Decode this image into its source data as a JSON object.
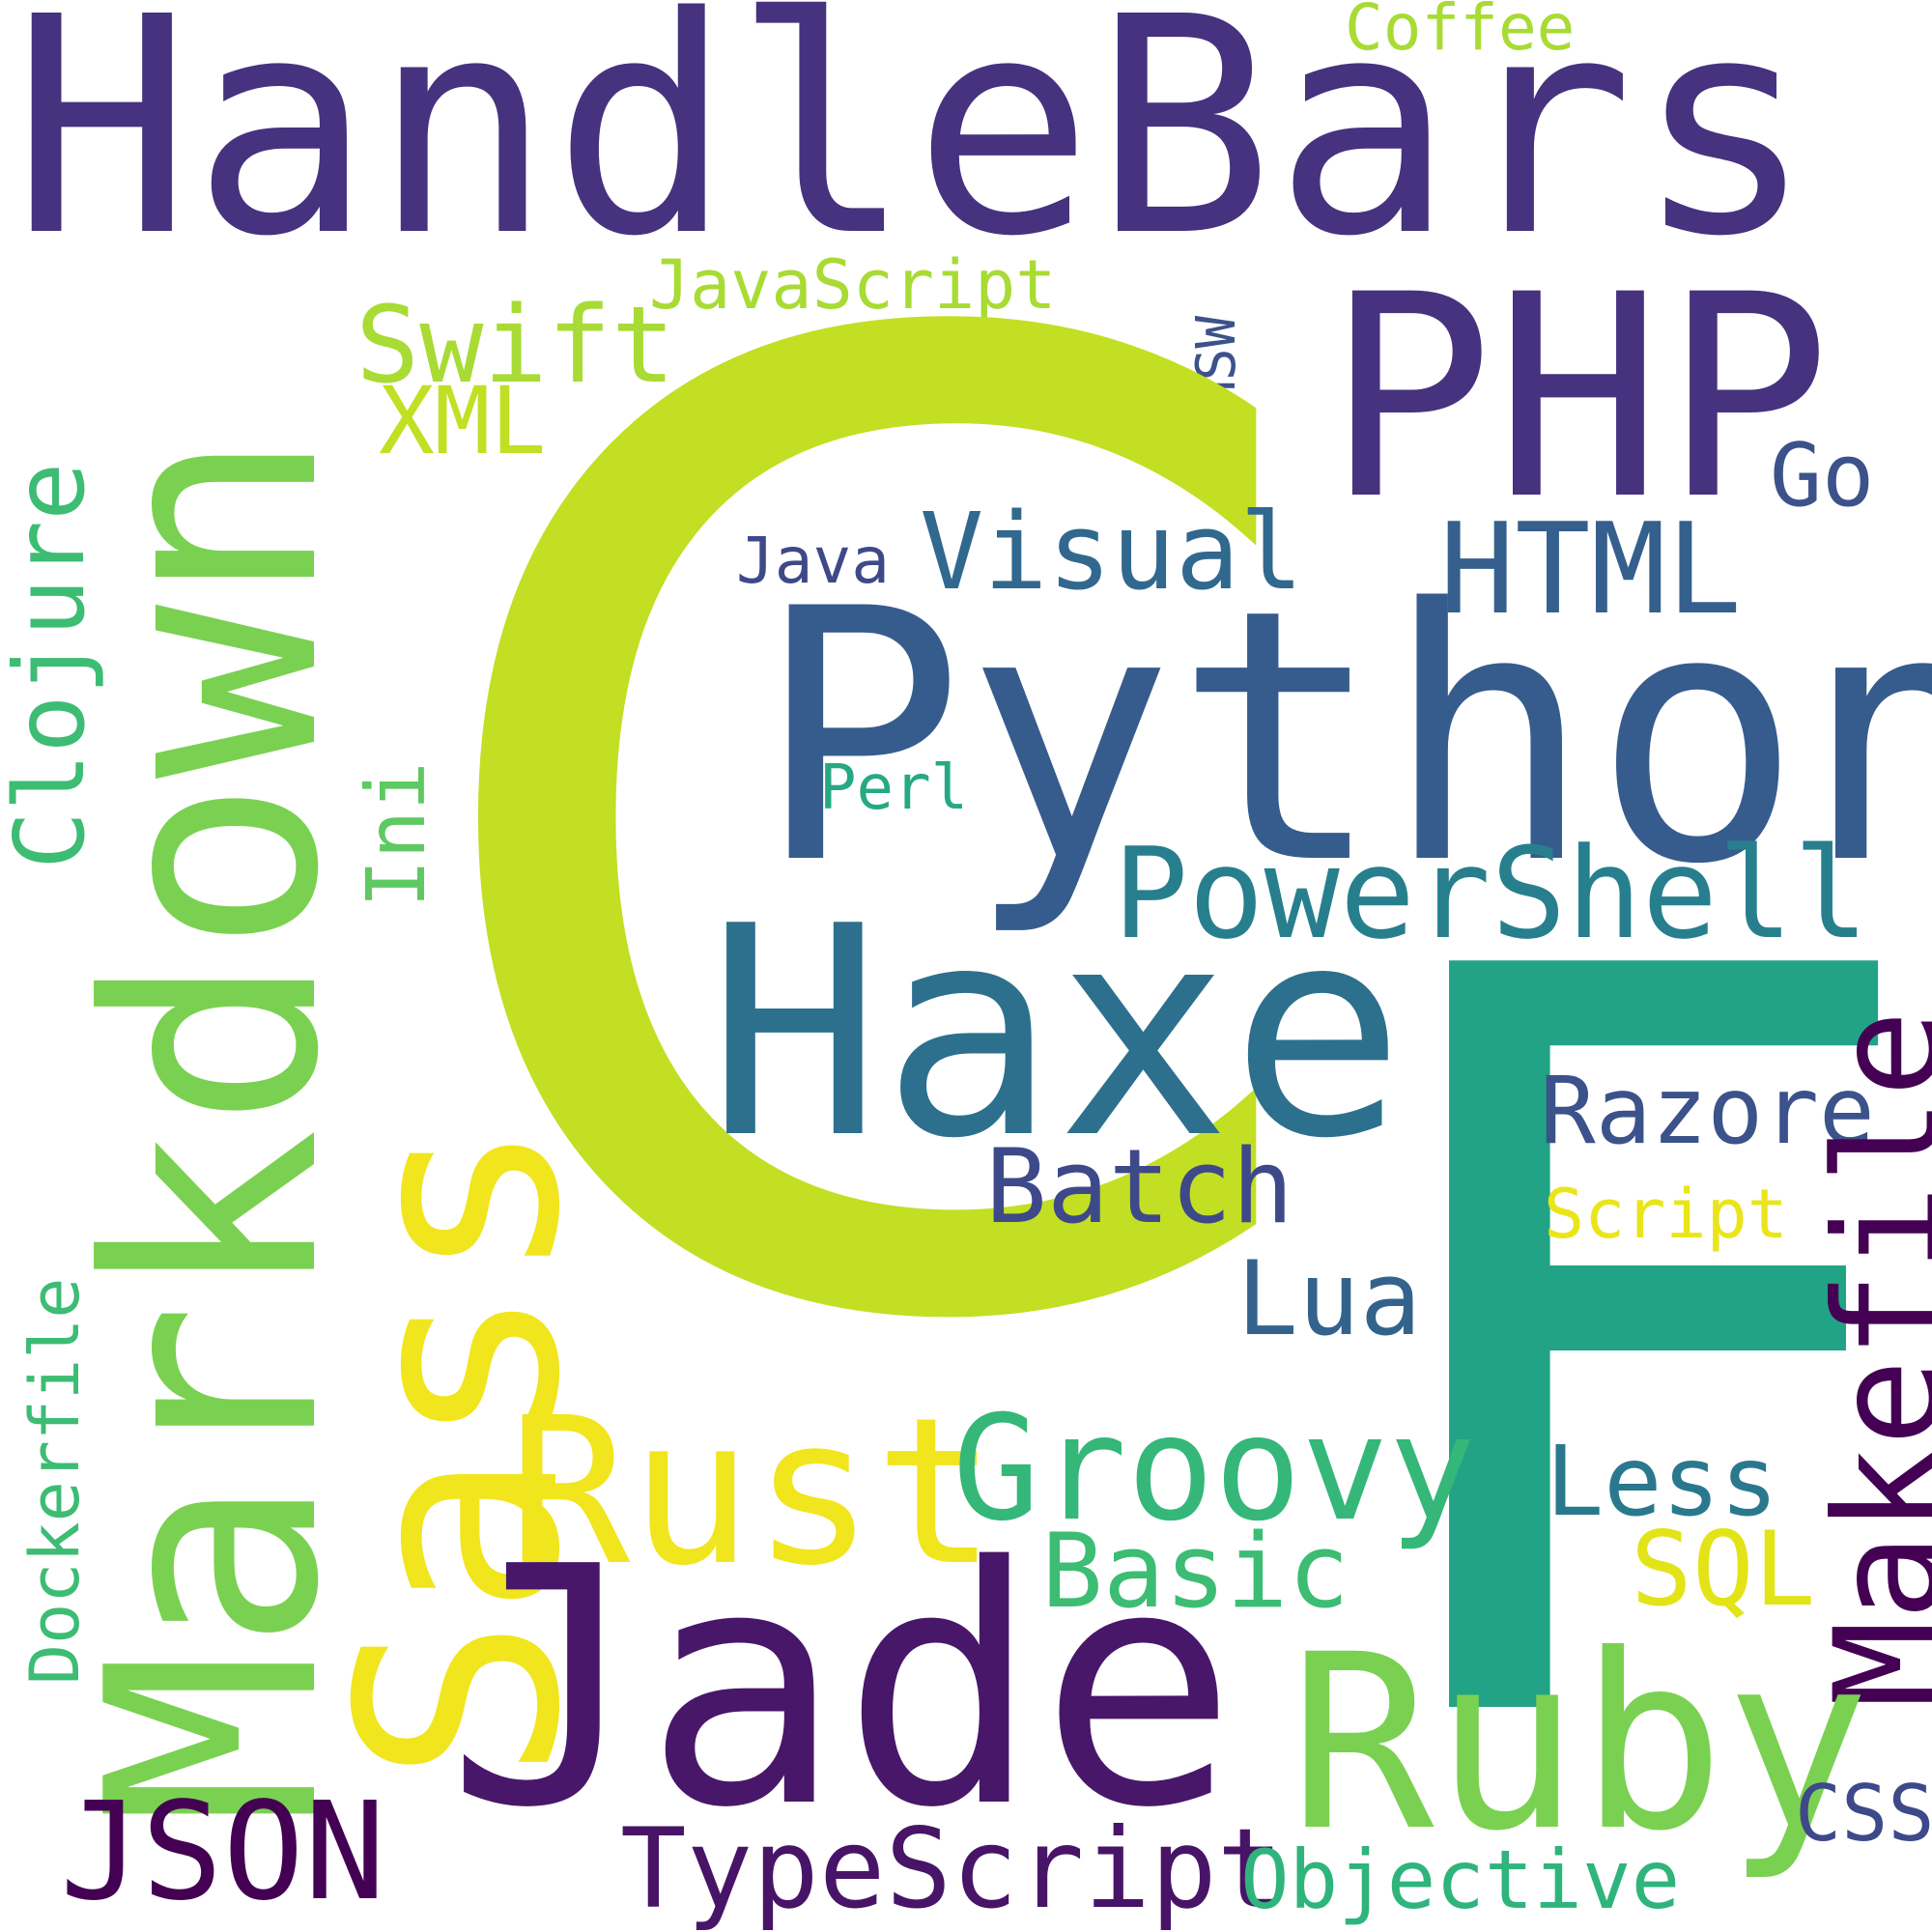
{
  "words": [
    {
      "text": "HandleBars",
      "color": "#46327e"
    },
    {
      "text": "Coffee",
      "color": "#a8db34"
    },
    {
      "text": "PHP",
      "color": "#46327e"
    },
    {
      "text": "Markdown",
      "color": "#7ad151"
    },
    {
      "text": "JavaScript",
      "color": "#a8db34"
    },
    {
      "text": "Swift",
      "color": "#a8db34"
    },
    {
      "text": "XML",
      "color": "#c2df23"
    },
    {
      "text": "MSW",
      "color": "#3b528b"
    },
    {
      "text": "C",
      "color": "#c2df23"
    },
    {
      "text": "Go",
      "color": "#3b528b"
    },
    {
      "text": "Clojure",
      "color": "#3dbc74"
    },
    {
      "text": "Java",
      "color": "#3e4989"
    },
    {
      "text": "Visual",
      "color": "#31688e"
    },
    {
      "text": "HTML",
      "color": "#355f8d"
    },
    {
      "text": "Python",
      "color": "#365c8d"
    },
    {
      "text": "Ini",
      "color": "#5ec962"
    },
    {
      "text": "Perl",
      "color": "#26a983"
    },
    {
      "text": "PowerShell",
      "color": "#277f8e"
    },
    {
      "text": "Haxe",
      "color": "#2d708e"
    },
    {
      "text": "F",
      "color": "#22a385"
    },
    {
      "text": "Razore",
      "color": "#3b528b"
    },
    {
      "text": "Makefile",
      "color": "#440154"
    },
    {
      "text": "Batch",
      "color": "#3e4989"
    },
    {
      "text": "Script",
      "color": "#eae51a"
    },
    {
      "text": "Lua",
      "color": "#33638d"
    },
    {
      "text": "Sass",
      "color": "#f1e51d"
    },
    {
      "text": "Dockerfile",
      "color": "#3dbc74"
    },
    {
      "text": "Rust",
      "color": "#f1e51d"
    },
    {
      "text": "Groovy",
      "color": "#35b779"
    },
    {
      "text": "Less",
      "color": "#2a788e"
    },
    {
      "text": "Basic",
      "color": "#3dbc74"
    },
    {
      "text": "SQL",
      "color": "#e2e418"
    },
    {
      "text": "Jade",
      "color": "#481769"
    },
    {
      "text": "Ruby",
      "color": "#7ad151"
    },
    {
      "text": "CSS",
      "color": "#3e4989"
    },
    {
      "text": "JSON",
      "color": "#440154"
    },
    {
      "text": "TypeScript",
      "color": "#481467"
    },
    {
      "text": "Objective",
      "color": "#2fb47c"
    }
  ]
}
